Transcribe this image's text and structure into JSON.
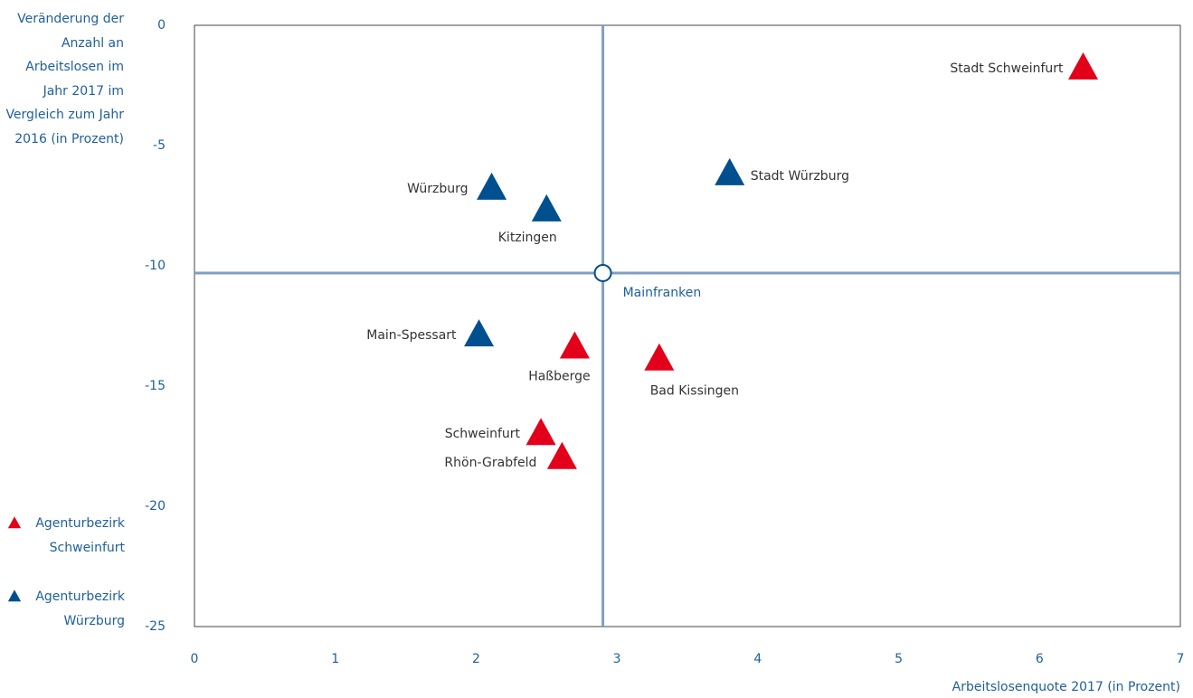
{
  "chart_data": {
    "type": "scatter",
    "y_label": "Veränderung der Anzahl an Arbeitslosen im Jahr 2017 im Vergleich zum Jahr 2016 (in Prozent)",
    "x_label": "Arbeitslosenquote 2017 (in Prozent)",
    "xlim": [
      0,
      7
    ],
    "xticks": [
      0,
      1,
      2,
      3,
      4,
      5,
      6,
      7
    ],
    "ylim": [
      -25,
      0
    ],
    "yticks": [
      0,
      -5,
      -10,
      -15,
      -20,
      -25
    ],
    "series": [
      {
        "name": "Agenturbezirk Schweinfurt",
        "color": "#e2001a",
        "labels": [
          "Stadt Schweinfurt",
          "Haßberge",
          "Bad Kissingen",
          "Schweinfurt",
          "Rhön-Grabfeld"
        ],
        "x": [
          6.31,
          2.7,
          3.3,
          2.46,
          2.61
        ],
        "values": [
          -1.8,
          -13.4,
          -13.9,
          -17.0,
          -18.0
        ]
      },
      {
        "name": "Agenturbezirk Würzburg",
        "color": "#004f8f",
        "labels": [
          "Stadt Würzburg",
          "Würzburg",
          "Kitzingen",
          "Main-Spessart"
        ],
        "x": [
          3.8,
          2.11,
          2.5,
          2.02
        ],
        "values": [
          -6.2,
          -6.8,
          -7.7,
          -12.9
        ]
      }
    ],
    "reference": {
      "label": "Mainfranken",
      "x": 2.9,
      "y": -10.3,
      "color": "#7f9fc2"
    }
  }
}
